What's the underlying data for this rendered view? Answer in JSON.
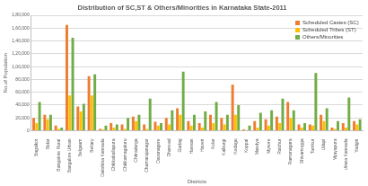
{
  "chart_data": {
    "type": "bar",
    "title": "Distribution of SC,ST & Others/Minorities in Karnataka State-2011",
    "x_label": "Districts",
    "y_label": "No.of Population",
    "categories": [
      "Bagalkot",
      "Bidar",
      "Bangalore Rural",
      "Bangalore Urban",
      "Belgaum",
      "Bellary",
      "Dakshina Kannada",
      "Chikkaballapura",
      "Chikkamagaluru",
      "Chitradurga",
      "Chamarajanagar",
      "Davanagere",
      "Dharwad",
      "Gadag",
      "Hassan",
      "Haveri",
      "Kolar",
      "Kalburgi",
      "Kodagu",
      "Koppal",
      "Mandya",
      "Mysore",
      "Raichur",
      "Ramanagara",
      "Shivamogga",
      "Tumkur",
      "Udupi",
      "Vijayapura",
      "Uttara Kannada",
      "Yadgiri"
    ],
    "series": [
      {
        "name": "Scheduled Castes (SC)",
        "color": "#ed7d31",
        "values": [
          20000,
          25000,
          8000,
          165000,
          38000,
          85000,
          3000,
          12000,
          10000,
          22000,
          10000,
          14000,
          20000,
          35000,
          15000,
          12000,
          25000,
          20000,
          72000,
          2000,
          15000,
          18000,
          22000,
          45000,
          10000,
          10000,
          25000,
          5000,
          12000,
          15000
        ]
      },
      {
        "name": "Scheduled Tribes (ST)",
        "color": "#ffc000",
        "values": [
          12000,
          18000,
          3000,
          55000,
          30000,
          55000,
          2000,
          5000,
          3000,
          15000,
          3000,
          8000,
          10000,
          25000,
          8000,
          5000,
          12000,
          10000,
          25000,
          1000,
          5000,
          8000,
          12000,
          20000,
          5000,
          8000,
          15000,
          3000,
          5000,
          10000
        ]
      },
      {
        "name": "Others/Minorities",
        "color": "#70ad47",
        "values": [
          45000,
          25000,
          5000,
          145000,
          42000,
          88000,
          8000,
          10000,
          20000,
          25000,
          50000,
          12000,
          32000,
          92000,
          25000,
          30000,
          45000,
          25000,
          40000,
          8000,
          28000,
          32000,
          50000,
          32000,
          12000,
          90000,
          35000,
          15000,
          52000,
          18000
        ]
      }
    ],
    "ylim": [
      0,
      180000
    ],
    "yticks": [
      0,
      {
        "value": 20000,
        "label": "20,000"
      },
      {
        "value": 40000,
        "label": "40,000"
      },
      {
        "value": 60000,
        "label": "60,000"
      },
      {
        "value": 80000,
        "label": "80,000"
      },
      {
        "value": 100000,
        "label": "1,00,000"
      },
      {
        "value": 120000,
        "label": "1,20,000"
      },
      {
        "value": 140000,
        "label": "1,40,000"
      },
      {
        "value": 160000,
        "label": "1,60,000"
      },
      {
        "value": 180000,
        "label": "1,80,000"
      }
    ],
    "grid": true,
    "legend": "upper right"
  }
}
